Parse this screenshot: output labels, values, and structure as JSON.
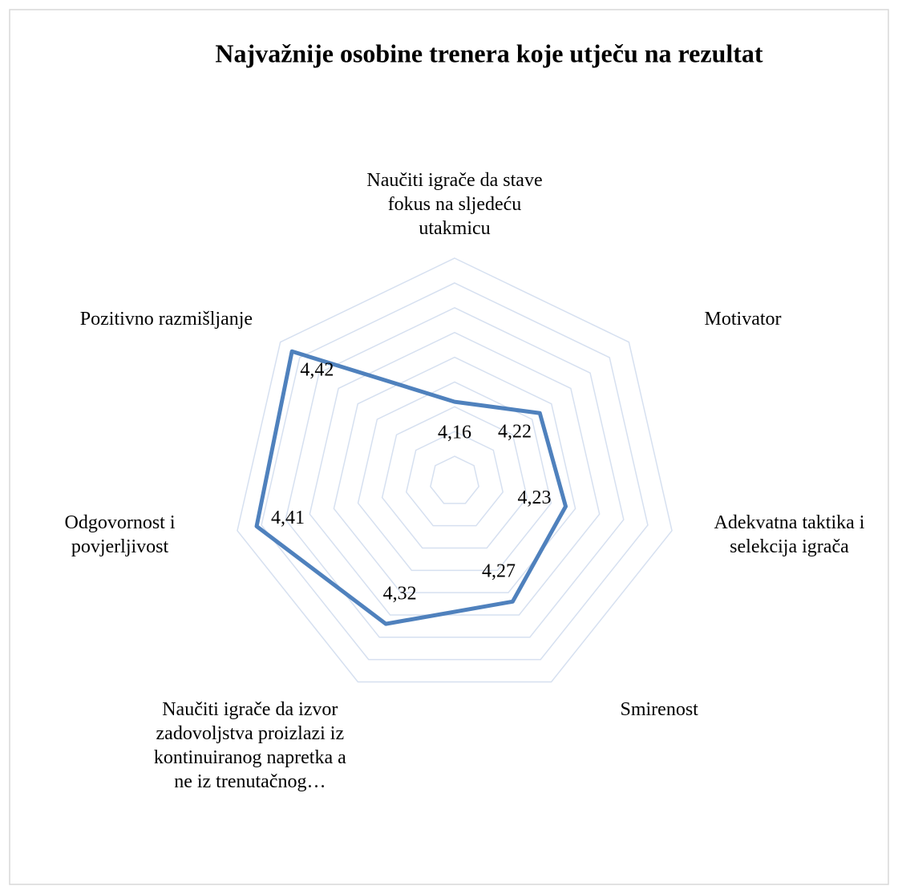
{
  "chart_data": {
    "type": "radar",
    "title": "Najvažnije osobine trenera  koje utječu na rezultat",
    "categories": [
      "Naučiti igrače da stave fokus na sljedeću utakmicu",
      "Motivator",
      "Adekvatna taktika i selekcija igrača",
      "Smirenost",
      "Naučiti igrače da izvor zadovoljstva proizlazi iz kontinuiranog napretka a ne iz trenutačnog…",
      "Odgovornost i povjerljivost",
      "Pozitivno razmišljanje"
    ],
    "values": [
      4.16,
      4.22,
      4.23,
      4.27,
      4.32,
      4.41,
      4.42
    ],
    "value_labels": [
      "4,16",
      "4,22",
      "4,23",
      "4,27",
      "4,32",
      "4,41",
      "4,42"
    ],
    "color": "#4f81bd",
    "ylim": [
      4.0,
      4.45
    ],
    "yticks": [
      4.0,
      4.05,
      4.1,
      4.15,
      4.2,
      4.25,
      4.3,
      4.35,
      4.4,
      4.45
    ],
    "grid": true
  }
}
